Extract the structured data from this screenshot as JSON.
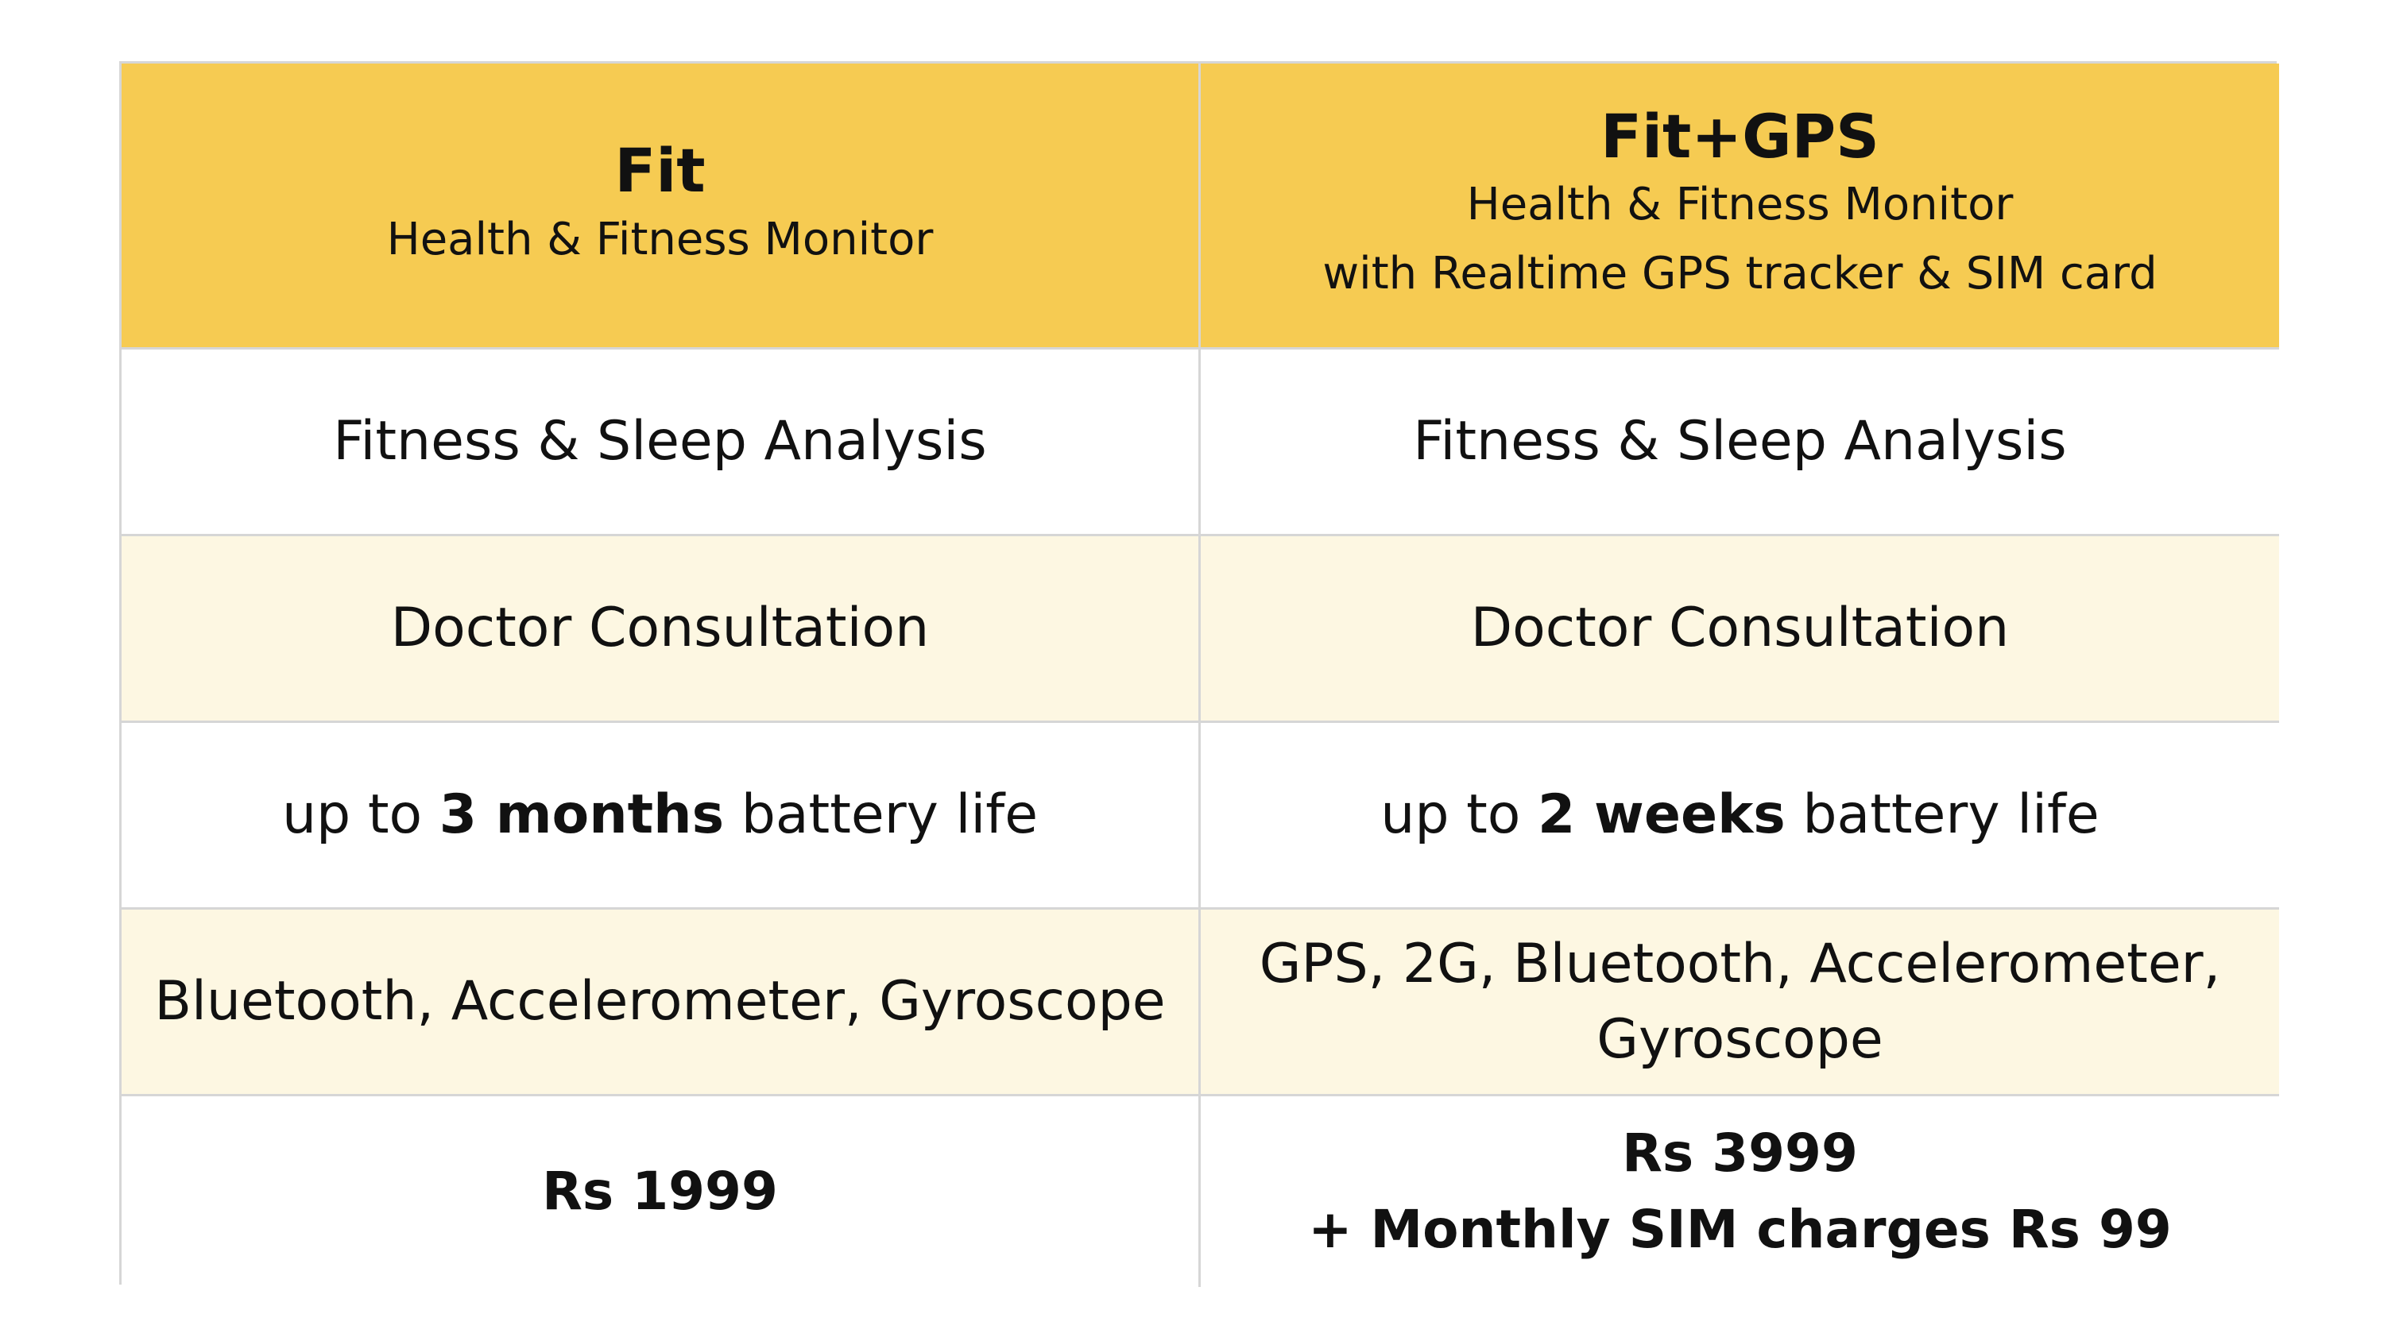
{
  "plans": [
    {
      "name": "Fit",
      "subtitle_lines": [
        "Health & Fitness Monitor"
      ],
      "feature_analysis": "Fitness & Sleep Analysis",
      "feature_consultation": "Doctor Consultation",
      "battery": {
        "prefix": "up to ",
        "bold": "3 months",
        "suffix": " battery life"
      },
      "sensors_lines": [
        "Bluetooth, Accelerometer, Gyroscope"
      ],
      "price_lines": [
        "Rs 1999"
      ]
    },
    {
      "name": "Fit+GPS",
      "subtitle_lines": [
        "Health & Fitness Monitor",
        "with Realtime GPS tracker & SIM card"
      ],
      "feature_analysis": "Fitness & Sleep Analysis",
      "feature_consultation": "Doctor Consultation",
      "battery": {
        "prefix": "up to ",
        "bold": "2 weeks",
        "suffix": " battery life"
      },
      "sensors_lines": [
        "GPS, 2G, Bluetooth, Accelerometer,",
        "Gyroscope"
      ],
      "price_lines": [
        "Rs 3999",
        "+ Monthly SIM charges Rs 99"
      ]
    }
  ],
  "colors": {
    "header_bg": "#f6cb52",
    "alt_row_bg": "#fdf7e2",
    "border": "#d6d6d6"
  }
}
